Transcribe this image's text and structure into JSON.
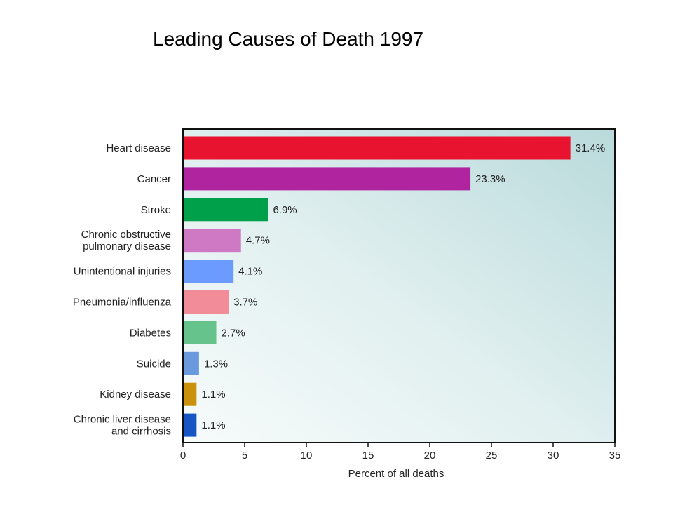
{
  "slide": {
    "title": "Leading Causes of Death 1997"
  },
  "chart_data": {
    "type": "bar",
    "orientation": "horizontal",
    "title": "Leading Causes of Death 1997",
    "xlabel": "Percent of all deaths",
    "ylabel": "",
    "xlim": [
      0,
      35
    ],
    "xticks": [
      0,
      5,
      10,
      15,
      20,
      25,
      30,
      35
    ],
    "grid": false,
    "categories": [
      [
        "Heart disease"
      ],
      [
        "Cancer"
      ],
      [
        "Stroke"
      ],
      [
        "Chronic obstructive",
        "pulmonary disease"
      ],
      [
        "Unintentional injuries"
      ],
      [
        "Pneumonia/influenza"
      ],
      [
        "Diabetes"
      ],
      [
        "Suicide"
      ],
      [
        "Kidney disease"
      ],
      [
        "Chronic liver disease",
        "and cirrhosis"
      ]
    ],
    "values": [
      31.4,
      23.3,
      6.9,
      4.7,
      4.1,
      3.7,
      2.7,
      1.3,
      1.1,
      1.1
    ],
    "value_labels": [
      "31.4%",
      "23.3%",
      "6.9%",
      "4.7%",
      "4.1%",
      "3.7%",
      "2.7%",
      "1.3%",
      "1.1%",
      "1.1%"
    ],
    "colors": [
      "#e8132f",
      "#b0249f",
      "#00a04a",
      "#cf79c5",
      "#6b9bff",
      "#f28c98",
      "#66c38c",
      "#6a99dd",
      "#c9920a",
      "#1556c4"
    ]
  }
}
